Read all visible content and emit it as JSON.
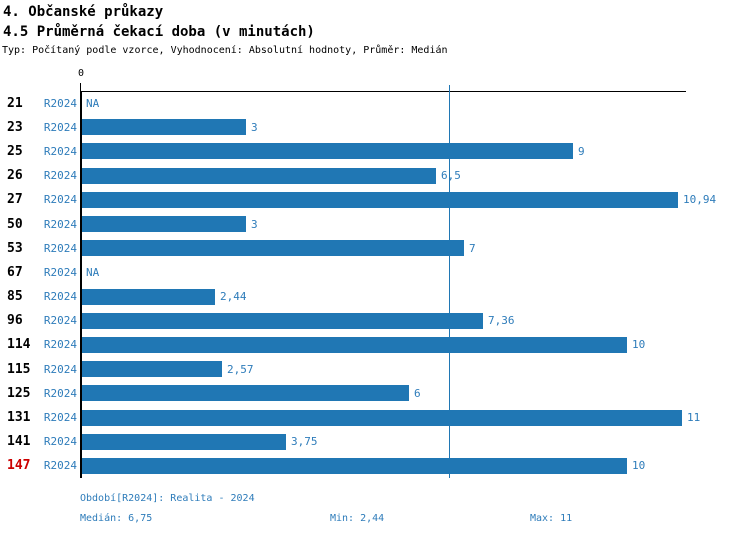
{
  "header": {
    "title": "4. Občanské průkazy",
    "subtitle": "4.5 Průměrná čekací doba (v minutách)",
    "meta": "Typ: Počítaný podle vzorce, Vyhodnocení: Absolutní hodnoty, Průměr: Medián"
  },
  "chart_data": {
    "type": "bar",
    "orientation": "horizontal",
    "title": "4.5 Průměrná čekací doba (v minutách)",
    "series_label": "R2024",
    "categories": [
      "21",
      "23",
      "25",
      "26",
      "27",
      "50",
      "53",
      "67",
      "85",
      "96",
      "114",
      "115",
      "125",
      "131",
      "141",
      "147"
    ],
    "values": [
      null,
      3,
      9,
      6.5,
      10.94,
      3,
      7,
      null,
      2.44,
      7.36,
      10,
      2.57,
      6,
      11,
      3.75,
      10
    ],
    "value_labels": [
      "NA",
      "3",
      "9",
      "6,5",
      "10,94",
      "3",
      "7",
      "NA",
      "2,44",
      "7,36",
      "10",
      "2,57",
      "6",
      "11",
      "3,75",
      "10"
    ],
    "highlighted_category": "147",
    "axis": {
      "tick_label": "0",
      "xmin": 0,
      "xmax": 11.1
    },
    "median_line_value": 6.75,
    "legend": "none",
    "grid": "off",
    "colors": {
      "bar": "#2077b4",
      "blue_text": "#2e7cba",
      "highlight": "#cc0000",
      "axis": "#000000"
    }
  },
  "footer": {
    "period": "Období[R2024]: Realita - 2024",
    "median": "Medián: 6,75",
    "min": "Min: 2,44",
    "max": "Max: 11"
  }
}
